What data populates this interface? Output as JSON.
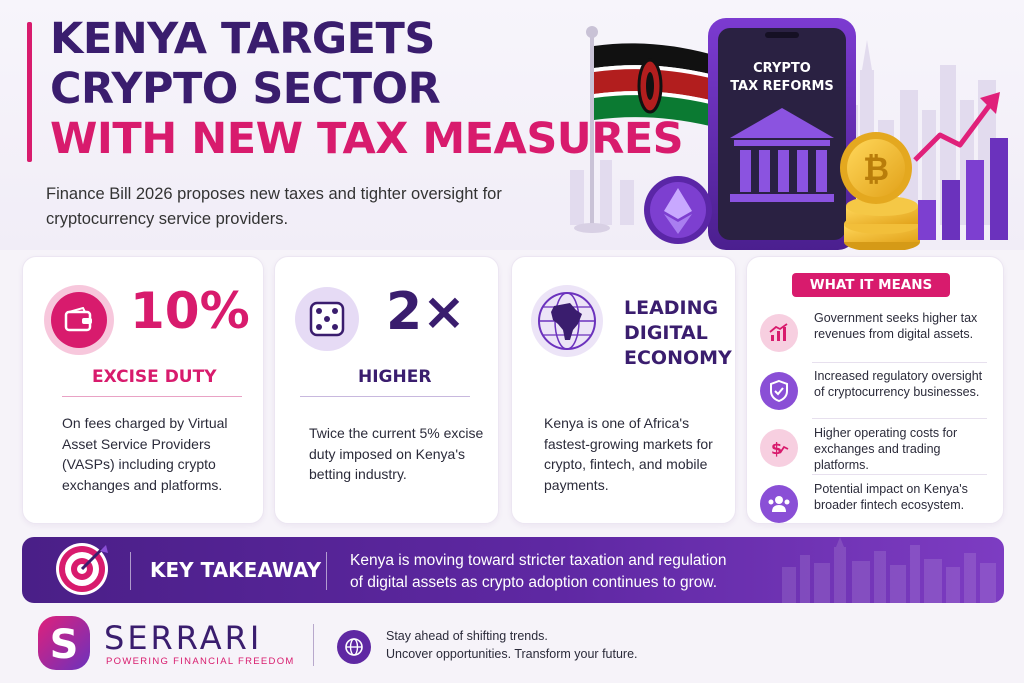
{
  "header": {
    "title_line1": "KENYA TARGETS",
    "title_line2": "CRYPTO SECTOR",
    "title_line3": "WITH NEW TAX MEASURES",
    "subtitle": "Finance Bill 2026 proposes new taxes and tighter oversight for cryptocurrency service providers."
  },
  "hero": {
    "phone_text_line1": "CRYPTO",
    "phone_text_line2": "TAX REFORMS",
    "coin_symbol": "₿"
  },
  "cards": [
    {
      "icon": "wallet-icon",
      "big": "10%",
      "label": "EXCISE DUTY",
      "description": "On fees charged by Virtual Asset Service Providers (VASPs) including crypto exchanges and platforms."
    },
    {
      "icon": "dice-icon",
      "big": "2×",
      "label": "HIGHER",
      "description": "Twice the current 5% excise duty imposed on Kenya's betting industry."
    },
    {
      "icon": "globe-africa-icon",
      "big_line1": "LEADING",
      "big_line2": "DIGITAL",
      "big_line3": "ECONOMY",
      "description": "Kenya is one of Africa's fastest-growing markets for crypto, fintech, and mobile payments."
    }
  ],
  "what_it_means": {
    "title": "WHAT IT MEANS",
    "items": [
      {
        "icon": "growth-chart-icon",
        "text": "Government seeks higher tax revenues from digital assets."
      },
      {
        "icon": "shield-check-icon",
        "text": "Increased regulatory oversight of cryptocurrency businesses."
      },
      {
        "icon": "dollar-up-icon",
        "text": "Higher operating costs for exchanges and trading platforms."
      },
      {
        "icon": "people-icon",
        "text": "Potential impact on Kenya's broader fintech ecosystem."
      }
    ]
  },
  "takeaway": {
    "label": "KEY TAKEAWAY",
    "text": "Kenya is moving toward stricter taxation and regulation of digital assets as crypto adoption continues to grow."
  },
  "footer": {
    "brand": "SERRARI",
    "tagline": "POWERING FINANCIAL FREEDOM",
    "line1": "Stay ahead of shifting trends.",
    "line2": "Uncover opportunities. Transform your future."
  },
  "colors": {
    "pink": "#d81b6d",
    "purple": "#3a1d6e",
    "violet": "#5f28a3"
  }
}
